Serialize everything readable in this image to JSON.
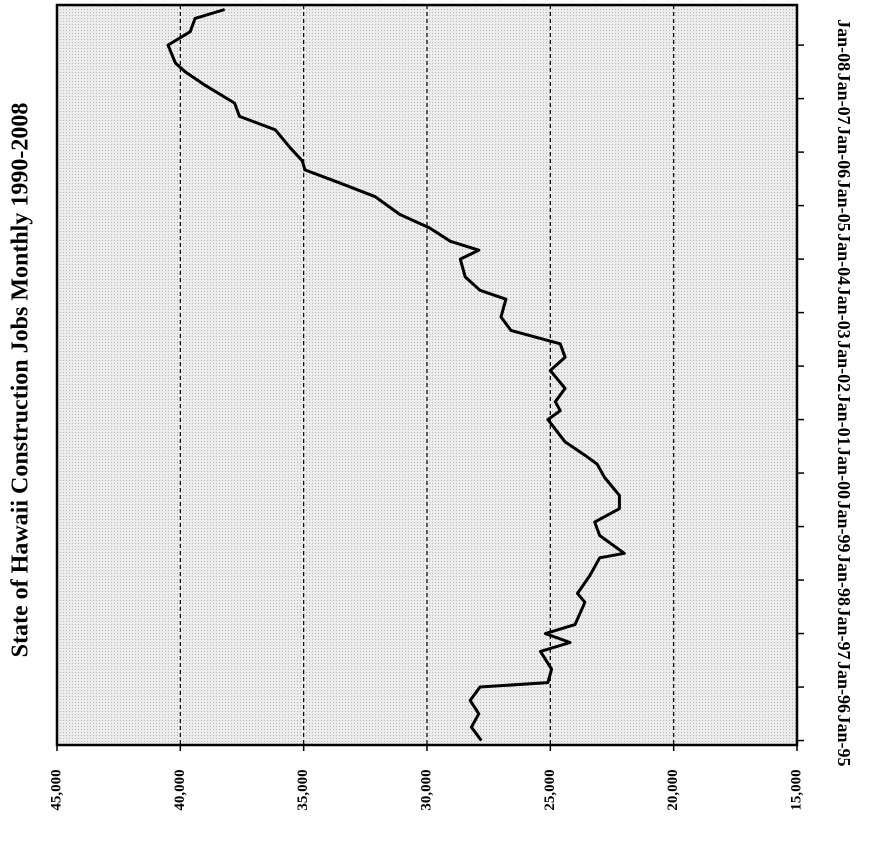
{
  "chart_data": {
    "type": "line",
    "title": "State of Hawaii Construction Jobs Monthly 1990-2008",
    "orientation": "rotated",
    "color": "#000000",
    "grid": true,
    "x": [
      "1995-01",
      "1995-04",
      "1995-07",
      "1995-10",
      "1996-01",
      "1996-02",
      "1996-05",
      "1996-09",
      "1996-11",
      "1997-01",
      "1997-03",
      "1997-08",
      "1997-10",
      "1998-02",
      "1998-06",
      "1998-07",
      "1998-11",
      "1999-02",
      "1999-05",
      "1999-08",
      "1999-12",
      "2000-03",
      "2000-05",
      "2000-08",
      "2001-01",
      "2001-03",
      "2001-05",
      "2001-08",
      "2001-12",
      "2002-03",
      "2002-06",
      "2002-09",
      "2002-12",
      "2003-04",
      "2003-06",
      "2003-09",
      "2004-01",
      "2004-03",
      "2004-05",
      "2004-08",
      "2004-11",
      "2005-03",
      "2005-06",
      "2005-09",
      "2005-11",
      "2006-02",
      "2006-06",
      "2006-09",
      "2006-12",
      "2007-04",
      "2007-07",
      "2007-09",
      "2008-01",
      "2008-04",
      "2008-07",
      "2008-09"
    ],
    "values": [
      27800,
      28200,
      27900,
      28250,
      27850,
      25100,
      24950,
      25400,
      24200,
      25200,
      24000,
      23600,
      23900,
      23400,
      23000,
      22000,
      23000,
      23200,
      22200,
      22200,
      22800,
      23100,
      23600,
      24400,
      25100,
      24600,
      24800,
      24400,
      25000,
      24400,
      24600,
      26600,
      27000,
      26800,
      27850,
      28450,
      28650,
      27900,
      29050,
      29900,
      31100,
      32100,
      33500,
      34950,
      35050,
      35550,
      36150,
      37600,
      37800,
      39000,
      39800,
      40200,
      40500,
      39600,
      39400,
      38200
    ],
    "xlim": [
      "1994-12",
      "2008-10"
    ],
    "xticks": [
      {
        "value": "1995-01",
        "label": "Jan-95"
      },
      {
        "value": "1996-01",
        "label": "Jan-96"
      },
      {
        "value": "1997-01",
        "label": "Jan-97"
      },
      {
        "value": "1998-01",
        "label": "Jan-98"
      },
      {
        "value": "1999-01",
        "label": "Jan-99"
      },
      {
        "value": "2000-01",
        "label": "Jan-00"
      },
      {
        "value": "2001-01",
        "label": "Jan-01"
      },
      {
        "value": "2002-01",
        "label": "Jan-02"
      },
      {
        "value": "2003-01",
        "label": "Jan-03"
      },
      {
        "value": "2004-01",
        "label": "Jan-04"
      },
      {
        "value": "2005-01",
        "label": "Jan-05"
      },
      {
        "value": "2006-01",
        "label": "Jan-06"
      },
      {
        "value": "2007-01",
        "label": "Jan-07"
      },
      {
        "value": "2008-01",
        "label": "Jan-08"
      }
    ],
    "ylim": [
      15000,
      45000
    ],
    "yticks": [
      {
        "value": 45000,
        "label": "45,000"
      },
      {
        "value": 40000,
        "label": "40,000"
      },
      {
        "value": 35000,
        "label": "35,000"
      },
      {
        "value": 30000,
        "label": "30,000"
      },
      {
        "value": 25000,
        "label": "25,000"
      },
      {
        "value": 20000,
        "label": "20,000"
      },
      {
        "value": 15000,
        "label": "15,000"
      }
    ]
  }
}
